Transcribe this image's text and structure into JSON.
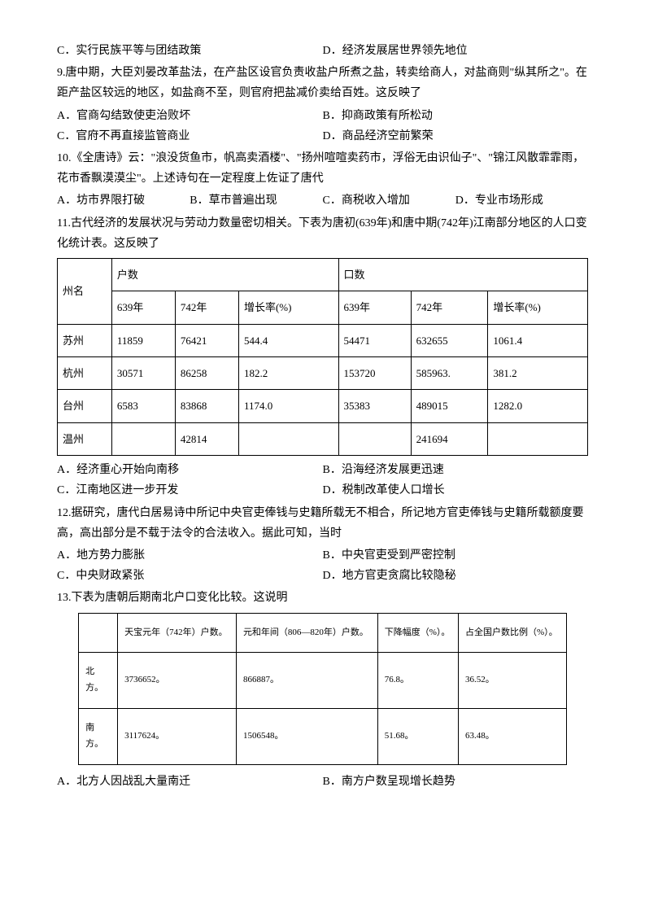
{
  "q8c": "C．实行民族平等与团结政策",
  "q8d": "D．经济发展居世界领先地位",
  "q9": "9.唐中期，大臣刘晏改革盐法，在产盐区设官负责收盐户所煮之盐，转卖给商人，对盐商则\"纵其所之\"。在距产盐区较远的地区，如盐商不至，则官府把盐减价卖给百姓。这反映了",
  "q9a": "A．官商勾结致使吏治败坏",
  "q9b": "B．抑商政策有所松动",
  "q9c": "C．官府不再直接监管商业",
  "q9d": "D．商品经济空前繁荣",
  "q10": "10.《全唐诗》云：\"浪没货鱼市，帆高卖酒楼\"、\"扬州喧喧卖药市，浮俗无由识仙子\"、\"锦江风散霏霏雨，花市香飘漠漠尘\"。上述诗句在一定程度上佐证了唐代",
  "q10a": "A．坊市界限打破",
  "q10b": "B．草市普遍出现",
  "q10c": "C．商税收入增加",
  "q10d": "D．专业市场形成",
  "q11": "11.古代经济的发展状况与劳动力数量密切相关。下表为唐初(639年)和唐中期(742年)江南部分地区的人口变化统计表。这反映了",
  "t1": {
    "h_state": "州名",
    "h_hu": "户数",
    "h_kou": "口数",
    "h_639": "639年",
    "h_742": "742年",
    "h_rate": "增长率(%)",
    "h_rate2": "增长率(%)",
    "rows": [
      [
        "苏州",
        "11859",
        "76421",
        "544.4",
        "54471",
        "632655",
        "1061.4"
      ],
      [
        "杭州",
        "30571",
        "86258",
        "182.2",
        "153720",
        "585963.",
        "381.2"
      ],
      [
        "台州",
        "6583",
        "83868",
        "1174.0",
        "35383",
        "489015",
        "1282.0"
      ],
      [
        "温州",
        "",
        "42814",
        "",
        "",
        "241694",
        ""
      ]
    ]
  },
  "q11a": "A．经济重心开始向南移",
  "q11b": "B．沿海经济发展更迅速",
  "q11c": "C．江南地区进一步开发",
  "q11d": "D．税制改革使人口增长",
  "q12": "12.据研究，唐代白居易诗中所记中央官吏俸钱与史籍所载无不相合，所记地方官吏俸钱与史籍所载额度要高，高出部分是不载于法令的合法收入。据此可知，当时",
  "q12a": "A．地方势力膨胀",
  "q12b": "B．中央官吏受到严密控制",
  "q12c": "C．中央财政紧张",
  "q12d": "D．地方官吏贪腐比较隐秘",
  "q13": "13.下表为唐朝后期南北户口变化比较。这说明",
  "t2": {
    "h1": "天宝元年（742年）户数。",
    "h2": "元和年间（806—820年）户数。",
    "h3": "下降幅度（%）。",
    "h4": "占全国户数比例（%）。",
    "r1": [
      "北方。",
      "3736652。",
      "866887。",
      "76.8。",
      "36.52。"
    ],
    "r2": [
      "南方。",
      "3117624。",
      "1506548。",
      "51.68。",
      "63.48。"
    ]
  },
  "q13a": "A．北方人因战乱大量南迁",
  "q13b": "B．南方户数呈现增长趋势"
}
